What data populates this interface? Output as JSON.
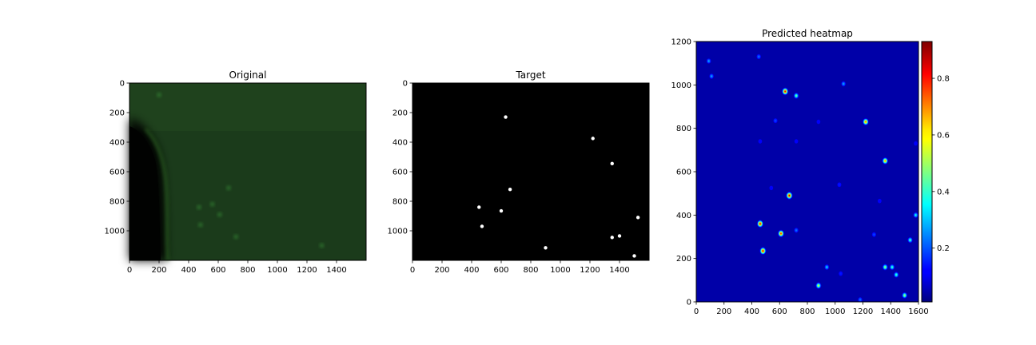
{
  "chart_data": [
    {
      "type": "image",
      "title": "Original",
      "xlim": [
        0,
        1600
      ],
      "ylim": [
        1200,
        0
      ],
      "xticks": [
        0,
        200,
        400,
        600,
        800,
        1000,
        1200,
        1400
      ],
      "yticks": [
        0,
        200,
        400,
        600,
        800,
        1000
      ],
      "colors": {
        "background": "#1c3a1c",
        "dark_region": "#050805",
        "spots": "#3fa83f"
      },
      "spots": [
        [
          670,
          710
        ],
        [
          560,
          820
        ],
        [
          470,
          840
        ],
        [
          610,
          890
        ],
        [
          480,
          960
        ],
        [
          720,
          1040
        ],
        [
          200,
          80
        ],
        [
          1300,
          1100
        ]
      ]
    },
    {
      "type": "image",
      "title": "Target",
      "xlim": [
        0,
        1600
      ],
      "ylim": [
        1200,
        0
      ],
      "xticks": [
        0,
        200,
        400,
        600,
        800,
        1000,
        1200,
        1400
      ],
      "yticks": [
        0,
        200,
        400,
        600,
        800,
        1000
      ],
      "colors": {
        "background": "#000000",
        "points": "#ffffff"
      },
      "points": [
        [
          630,
          230
        ],
        [
          1220,
          375
        ],
        [
          1350,
          545
        ],
        [
          660,
          720
        ],
        [
          450,
          840
        ],
        [
          600,
          865
        ],
        [
          1525,
          910
        ],
        [
          470,
          970
        ],
        [
          1350,
          1045
        ],
        [
          1400,
          1035
        ],
        [
          900,
          1115
        ],
        [
          1500,
          1170
        ]
      ]
    },
    {
      "type": "heatmap",
      "title": "Predicted heatmap",
      "xlim": [
        0,
        1600
      ],
      "ylim": [
        0,
        1200
      ],
      "xticks": [
        0,
        200,
        400,
        600,
        800,
        1000,
        1200,
        1400,
        1600
      ],
      "yticks": [
        0,
        200,
        400,
        600,
        800,
        1000,
        1200
      ],
      "colorbar": {
        "range": [
          0.01,
          0.93
        ],
        "ticks": [
          0.2,
          0.4,
          0.6,
          0.8
        ],
        "colormap": "jet"
      },
      "peaks": [
        {
          "x": 640,
          "y": 970,
          "v": 0.9
        },
        {
          "x": 720,
          "y": 950,
          "v": 0.5
        },
        {
          "x": 1220,
          "y": 830,
          "v": 0.8
        },
        {
          "x": 1360,
          "y": 650,
          "v": 0.75
        },
        {
          "x": 670,
          "y": 490,
          "v": 0.93
        },
        {
          "x": 460,
          "y": 360,
          "v": 0.9
        },
        {
          "x": 610,
          "y": 315,
          "v": 0.85
        },
        {
          "x": 480,
          "y": 235,
          "v": 0.9
        },
        {
          "x": 1360,
          "y": 160,
          "v": 0.55
        },
        {
          "x": 1410,
          "y": 160,
          "v": 0.45
        },
        {
          "x": 1440,
          "y": 125,
          "v": 0.45
        },
        {
          "x": 880,
          "y": 75,
          "v": 0.6
        },
        {
          "x": 1500,
          "y": 30,
          "v": 0.55
        },
        {
          "x": 940,
          "y": 160,
          "v": 0.35
        },
        {
          "x": 1540,
          "y": 285,
          "v": 0.45
        },
        {
          "x": 1580,
          "y": 400,
          "v": 0.4
        },
        {
          "x": 90,
          "y": 1110,
          "v": 0.3
        },
        {
          "x": 110,
          "y": 1040,
          "v": 0.3
        },
        {
          "x": 450,
          "y": 1130,
          "v": 0.25
        },
        {
          "x": 1060,
          "y": 1005,
          "v": 0.3
        },
        {
          "x": 570,
          "y": 835,
          "v": 0.2
        },
        {
          "x": 720,
          "y": 330,
          "v": 0.25
        },
        {
          "x": 1030,
          "y": 540,
          "v": 0.15
        },
        {
          "x": 1280,
          "y": 310,
          "v": 0.2
        },
        {
          "x": 1180,
          "y": 10,
          "v": 0.25
        },
        {
          "x": 1040,
          "y": 130,
          "v": 0.15
        },
        {
          "x": 1320,
          "y": 465,
          "v": 0.12
        },
        {
          "x": 460,
          "y": 740,
          "v": 0.1
        },
        {
          "x": 880,
          "y": 830,
          "v": 0.1
        },
        {
          "x": 1580,
          "y": 730,
          "v": 0.1
        },
        {
          "x": 540,
          "y": 525,
          "v": 0.1
        },
        {
          "x": 720,
          "y": 740,
          "v": 0.08
        }
      ]
    }
  ]
}
